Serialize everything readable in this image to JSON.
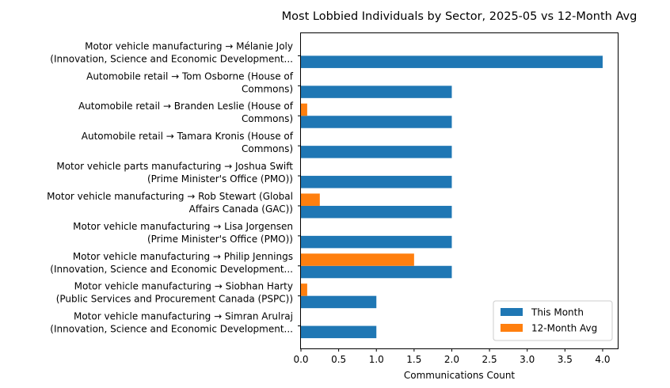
{
  "chart_data": {
    "type": "bar",
    "orientation": "horizontal",
    "title": "Most Lobbied Individuals by Sector, 2025-05 vs 12-Month Avg",
    "xlabel": "Communications Count",
    "ylabel": "",
    "xlim": [
      0,
      4.2
    ],
    "xticks": [
      "0.0",
      "0.5",
      "1.0",
      "1.5",
      "2.0",
      "2.5",
      "3.0",
      "3.5",
      "4.0"
    ],
    "grid": false,
    "legend_position": "lower-right",
    "categories": [
      [
        "Motor vehicle manufacturing → Mélanie Joly",
        "(Innovation, Science and Economic Development..."
      ],
      [
        "Automobile retail → Tom  Osborne (House of",
        "Commons)"
      ],
      [
        "Automobile retail → Branden Leslie (House of",
        "Commons)"
      ],
      [
        "Automobile retail → Tamara Kronis (House of",
        "Commons)"
      ],
      [
        "Motor vehicle parts manufacturing → Joshua Swift",
        "(Prime Minister's Office (PMO))"
      ],
      [
        "Motor vehicle manufacturing → Rob Stewart (Global",
        "Affairs Canada (GAC))"
      ],
      [
        "Motor vehicle manufacturing → Lisa Jorgensen",
        "(Prime Minister's Office (PMO))"
      ],
      [
        "Motor vehicle manufacturing → Philip Jennings",
        "(Innovation, Science and Economic Development..."
      ],
      [
        "Motor vehicle manufacturing → Siobhan Harty",
        "(Public Services and Procurement Canada (PSPC))"
      ],
      [
        "Motor vehicle manufacturing → Simran Arulraj",
        "(Innovation, Science and Economic Development..."
      ]
    ],
    "series": [
      {
        "name": "This Month",
        "color": "#1f77b4",
        "values": [
          4,
          2,
          2,
          2,
          2,
          2,
          2,
          2,
          1,
          1
        ]
      },
      {
        "name": "12-Month Avg",
        "color": "#ff7f0e",
        "values": [
          0,
          0,
          0.083,
          0,
          0,
          0.25,
          0,
          1.5,
          0.083,
          0
        ]
      }
    ]
  }
}
